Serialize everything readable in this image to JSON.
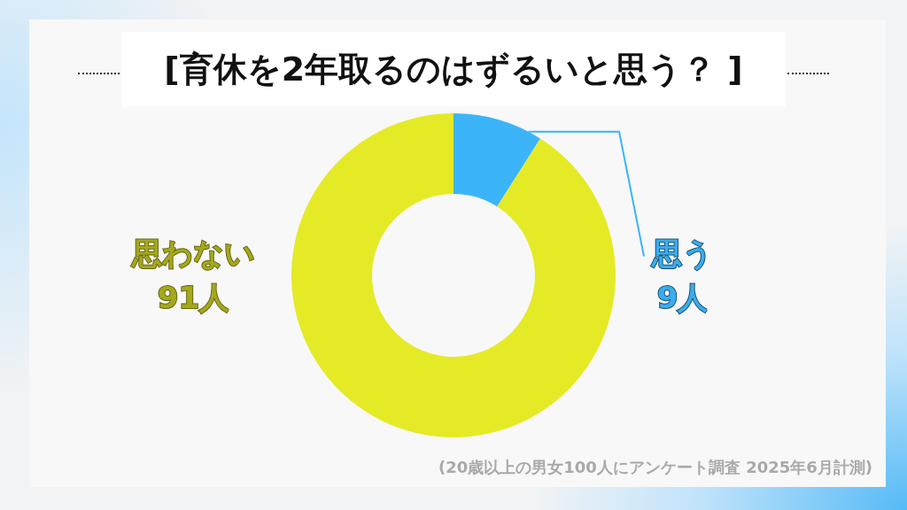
{
  "chart_data": {
    "type": "donut",
    "title": "[育休を2年取るのはずるいと思う？ ]",
    "categories": [
      "思う",
      "思わない"
    ],
    "values": [
      9,
      91
    ],
    "colors": [
      "#3cb4fa",
      "#e5ea27"
    ],
    "value_labels": [
      "9人",
      "91人"
    ],
    "annotations": [
      "(20歳以上の男女100人にアンケート調査 2025年6月計測)"
    ]
  }
}
